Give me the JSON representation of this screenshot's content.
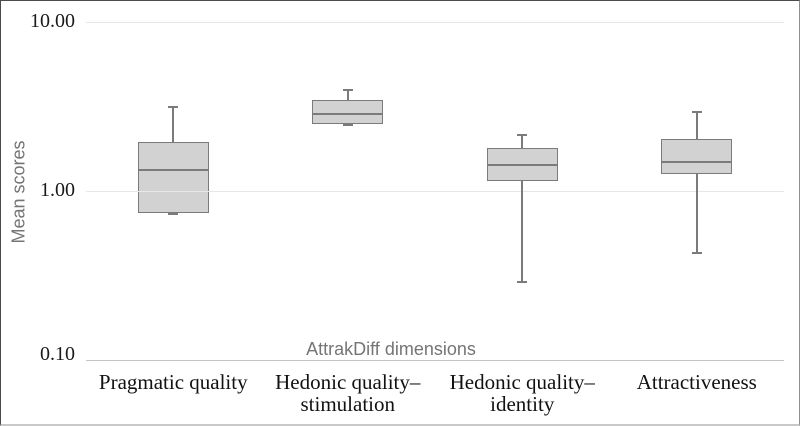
{
  "chart_data": {
    "type": "boxplot",
    "title": "",
    "xlabel": "AttrakDiff dimensions",
    "ylabel": "Mean scores",
    "y_scale": "log",
    "ylim": [
      0.1,
      10.0
    ],
    "y_ticks": [
      {
        "label": "10.00",
        "value": 10.0
      },
      {
        "label": "1.00",
        "value": 1.0
      },
      {
        "label": "0.10",
        "value": 0.1
      }
    ],
    "grid": "horizontal-only",
    "legend": "none",
    "categories": [
      "Pragmatic quality",
      "Hedonic quality–stimulation",
      "Hedonic quality–identity",
      "Attractiveness"
    ],
    "boxes": [
      {
        "category": "Pragmatic quality",
        "label_lines": [
          "Pragmatic quality"
        ],
        "min": 0.73,
        "q1": 0.74,
        "median": 1.34,
        "q3": 1.95,
        "max": 3.15
      },
      {
        "category": "Hedonic quality–stimulation",
        "label_lines": [
          "Hedonic quality–",
          "stimulation"
        ],
        "min": 2.46,
        "q1": 2.48,
        "median": 2.84,
        "q3": 3.44,
        "max": 3.95
      },
      {
        "category": "Hedonic quality–identity",
        "label_lines": [
          "Hedonic quality–",
          "identity"
        ],
        "min": 0.29,
        "q1": 1.14,
        "median": 1.43,
        "q3": 1.8,
        "max": 2.14
      },
      {
        "category": "Attractiveness",
        "label_lines": [
          "Attractiveness"
        ],
        "min": 0.43,
        "q1": 1.26,
        "median": 1.48,
        "q3": 2.02,
        "max": 2.93
      }
    ],
    "colors": {
      "box_fill": "#d2d2d2",
      "box_border": "#7b7b7b",
      "gridline": "#e7e7e7",
      "axis_line": "#c4c4c4",
      "axis_text_gray": "#757575",
      "tick_text": "#1a1a1a"
    }
  }
}
